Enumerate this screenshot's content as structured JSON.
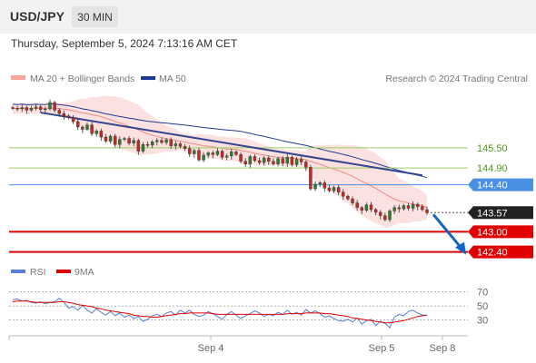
{
  "header": {
    "symbol": "USD/JPY",
    "timeframe": "30 MIN",
    "timestamp": "Thursday, September 5, 2024 7:13:16 AM CET"
  },
  "legend": {
    "bollinger_label": "MA 20 + Bollinger Bands",
    "ma50_label": "MA 50",
    "credit": "Research © 2024 Trading Central",
    "rsi_label": "RSI",
    "ma9_label": "9MA"
  },
  "colors": {
    "up_candle": "#2e7d32",
    "down_candle": "#c62828",
    "bollinger_fill": "#f8c9c4",
    "ma20": "#f08a80",
    "ma50": "#1f3a93",
    "trend_line": "#34458f",
    "support_line": "#e00000",
    "resistance_line": "#4a90e2",
    "target_line": "#9ccc65",
    "rsi": "#5b7fd6",
    "rsi_ma": "#e00000",
    "arrow": "#1565c0"
  },
  "chart_data": {
    "type": "candlestick",
    "instrument": "USD/JPY",
    "timeframe": "30 MIN",
    "x_ticks": [
      "Sep 4",
      "Sep 5",
      "Sep 8"
    ],
    "price_axis_labels": [
      145.5,
      144.9,
      144.4,
      143.57,
      143.0,
      142.4
    ],
    "levels": [
      {
        "value": 145.5,
        "label": "145.50",
        "kind": "target"
      },
      {
        "value": 144.9,
        "label": "144.90",
        "kind": "target"
      },
      {
        "value": 144.4,
        "label": "144.40",
        "kind": "resistance"
      },
      {
        "value": 143.57,
        "label": "143.57",
        "kind": "last_price"
      },
      {
        "value": 143.0,
        "label": "143.00",
        "kind": "support"
      },
      {
        "value": 142.4,
        "label": "142.40",
        "kind": "support"
      }
    ],
    "forecast_arrow": {
      "from": 143.57,
      "to": 142.4
    },
    "closes": [
      146.68,
      146.66,
      146.7,
      146.62,
      146.68,
      146.72,
      146.64,
      146.66,
      146.85,
      146.62,
      146.52,
      146.45,
      146.4,
      146.28,
      146.12,
      146.05,
      146.18,
      145.92,
      146.0,
      145.82,
      145.7,
      145.85,
      145.6,
      145.75,
      145.78,
      145.64,
      145.72,
      145.4,
      145.6,
      145.58,
      145.68,
      145.72,
      145.66,
      145.74,
      145.56,
      145.62,
      145.54,
      145.48,
      145.32,
      145.42,
      145.14,
      145.28,
      145.35,
      145.3,
      145.4,
      145.22,
      145.26,
      145.38,
      145.3,
      145.1,
      145.02,
      145.24,
      145.12,
      145.06,
      145.2,
      145.1,
      145.02,
      145.18,
      145.04,
      145.22,
      145.0,
      145.16,
      145.08,
      144.92,
      144.28,
      144.42,
      144.46,
      144.3,
      144.22,
      144.32,
      144.18,
      144.06,
      143.98,
      143.86,
      143.72,
      143.64,
      143.8,
      143.66,
      143.58,
      143.48,
      143.36,
      143.62,
      143.72,
      143.68,
      143.78,
      143.7,
      143.82,
      143.75,
      143.66,
      143.57
    ],
    "price_range": [
      142.2,
      147.2
    ],
    "rsi": {
      "axis_labels": [
        70,
        50,
        30
      ],
      "range": [
        10,
        80
      ],
      "values": [
        59,
        60,
        57,
        58,
        55,
        54,
        56,
        53,
        55,
        56,
        61,
        55,
        47,
        49,
        44,
        51,
        44,
        40,
        46,
        41,
        37,
        42,
        36,
        40,
        34,
        37,
        32,
        35,
        28,
        31,
        36,
        38,
        35,
        40,
        42,
        37,
        44,
        40,
        44,
        38,
        35,
        37,
        42,
        39,
        35,
        31,
        38,
        42,
        37,
        32,
        36,
        39,
        43,
        40,
        35,
        38,
        36,
        41,
        38,
        44,
        38,
        41,
        37,
        45,
        40,
        43,
        39,
        34,
        36,
        32,
        29,
        28,
        31,
        27,
        33,
        24,
        29,
        31,
        22,
        28,
        25,
        19,
        34,
        38,
        36,
        42,
        44,
        40,
        37,
        37
      ],
      "ma9": [
        56,
        57,
        57,
        57,
        56,
        55,
        55,
        55,
        55,
        55,
        56,
        56,
        55,
        54,
        52,
        51,
        50,
        49,
        47,
        46,
        44,
        43,
        42,
        41,
        40,
        39,
        37,
        36,
        35,
        35,
        34,
        34,
        35,
        36,
        37,
        38,
        39,
        39,
        40,
        40,
        40,
        40,
        40,
        39,
        38,
        38,
        38,
        38,
        38,
        38,
        38,
        38,
        38,
        38,
        38,
        38,
        38,
        38,
        38,
        39,
        39,
        39,
        39,
        40,
        40,
        40,
        40,
        39,
        39,
        38,
        37,
        36,
        35,
        33,
        32,
        31,
        30,
        29,
        28,
        27,
        26,
        26,
        27,
        28,
        29,
        31,
        33,
        35,
        36,
        37
      ]
    }
  }
}
